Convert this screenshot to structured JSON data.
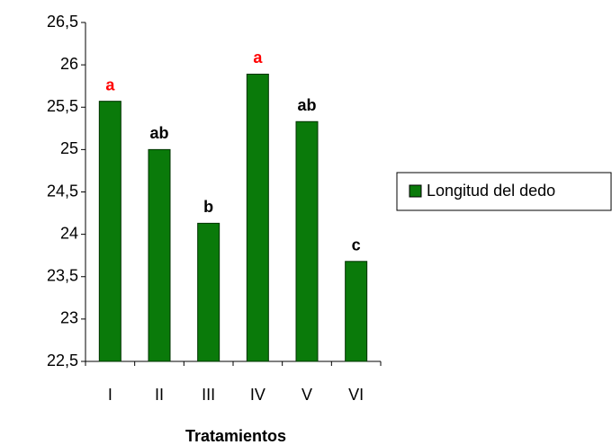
{
  "chart_data": {
    "type": "bar",
    "x_label": "Tratamientos",
    "categories": [
      "I",
      "II",
      "III",
      "IV",
      "V",
      "VI"
    ],
    "series": [
      {
        "name": "Longitud del dedo",
        "color": "#0a7a0a",
        "values": [
          25.57,
          25.0,
          24.13,
          25.89,
          25.33,
          23.68
        ]
      }
    ],
    "annotations": [
      {
        "text": "a",
        "color": "#ff0000"
      },
      {
        "text": "ab",
        "color": "#000000"
      },
      {
        "text": "b",
        "color": "#000000"
      },
      {
        "text": "a",
        "color": "#ff0000"
      },
      {
        "text": "ab",
        "color": "#000000"
      },
      {
        "text": "c",
        "color": "#000000"
      }
    ],
    "ylim": [
      22.5,
      26.5
    ],
    "yticks": [
      {
        "value": 22.5,
        "label": "22,5"
      },
      23,
      {
        "value": 23.5,
        "label": "23,5"
      },
      24,
      {
        "value": 24.5,
        "label": "24,5"
      },
      25,
      {
        "value": 25.5,
        "label": "25,5"
      },
      26,
      {
        "value": 26.5,
        "label": "26,5"
      }
    ],
    "legend": "right"
  }
}
